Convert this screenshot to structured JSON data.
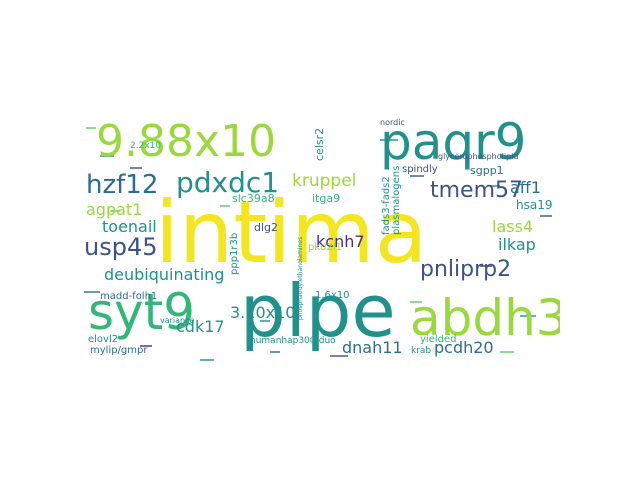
{
  "colors": {
    "yellow": "#f4e61e",
    "lime": "#9ad93c",
    "green": "#33b679",
    "teal": "#21918c",
    "blue": "#2c6e8e",
    "indigo": "#3b528b",
    "purple": "#472d7b",
    "dark": "#440154"
  },
  "words": [
    {
      "text": "intima",
      "color": "yellow"
    },
    {
      "text": "plpe",
      "color": "teal"
    },
    {
      "text": "9.88x10",
      "color": "lime"
    },
    {
      "text": "paqr9",
      "color": "teal"
    },
    {
      "text": "abdh3",
      "color": "lime"
    },
    {
      "text": "syt9",
      "color": "green"
    },
    {
      "text": "hzf12",
      "color": "blue"
    },
    {
      "text": "pdxdc1",
      "color": "teal"
    },
    {
      "text": "tmem57",
      "color": "indigo"
    },
    {
      "text": "usp45",
      "color": "indigo"
    },
    {
      "text": "pnliprp2",
      "color": "indigo"
    },
    {
      "text": "kruppel",
      "color": "lime"
    },
    {
      "text": "agpat1",
      "color": "lime"
    },
    {
      "text": "toenail",
      "color": "teal"
    },
    {
      "text": "deubiquinating",
      "color": "teal"
    },
    {
      "text": "cdk17",
      "color": "teal"
    },
    {
      "text": "3.10x10",
      "color": "teal"
    },
    {
      "text": "dnah11",
      "color": "blue"
    },
    {
      "text": "pcdh20",
      "color": "blue"
    },
    {
      "text": "kcnh7",
      "color": "purple"
    },
    {
      "text": "lass4",
      "color": "lime"
    },
    {
      "text": "ilkap",
      "color": "teal"
    },
    {
      "text": "aff1",
      "color": "blue"
    },
    {
      "text": "hsa19",
      "color": "teal"
    },
    {
      "text": "sgpp1",
      "color": "blue"
    },
    {
      "text": "spindly",
      "color": "indigo"
    },
    {
      "text": "glycerophospholipid",
      "color": "indigo"
    },
    {
      "text": "slc39a8",
      "color": "green"
    },
    {
      "text": "itga9",
      "color": "green"
    },
    {
      "text": "dlg2",
      "color": "indigo"
    },
    {
      "text": "madd-folh1",
      "color": "blue"
    },
    {
      "text": "mylip/gmpr",
      "color": "blue"
    },
    {
      "text": "humanhap300-duo",
      "color": "teal"
    },
    {
      "text": "yielded",
      "color": "green"
    },
    {
      "text": "krab",
      "color": "teal"
    },
    {
      "text": "pkd2l1",
      "color": "lime"
    },
    {
      "text": "1.6x10",
      "color": "teal"
    },
    {
      "text": "2.2x10",
      "color": "green"
    },
    {
      "text": "elovl2",
      "color": "teal"
    },
    {
      "text": "variance",
      "color": "teal"
    },
    {
      "text": "celsr2",
      "color": "teal"
    },
    {
      "text": "fads3-fads2",
      "color": "teal"
    },
    {
      "text": "plasmalogens",
      "color": "teal"
    },
    {
      "text": "ppp1r3b",
      "color": "teal"
    },
    {
      "text": "nordic",
      "color": "indigo"
    },
    {
      "text": "phosphatidylethanolamines",
      "color": "teal"
    }
  ]
}
